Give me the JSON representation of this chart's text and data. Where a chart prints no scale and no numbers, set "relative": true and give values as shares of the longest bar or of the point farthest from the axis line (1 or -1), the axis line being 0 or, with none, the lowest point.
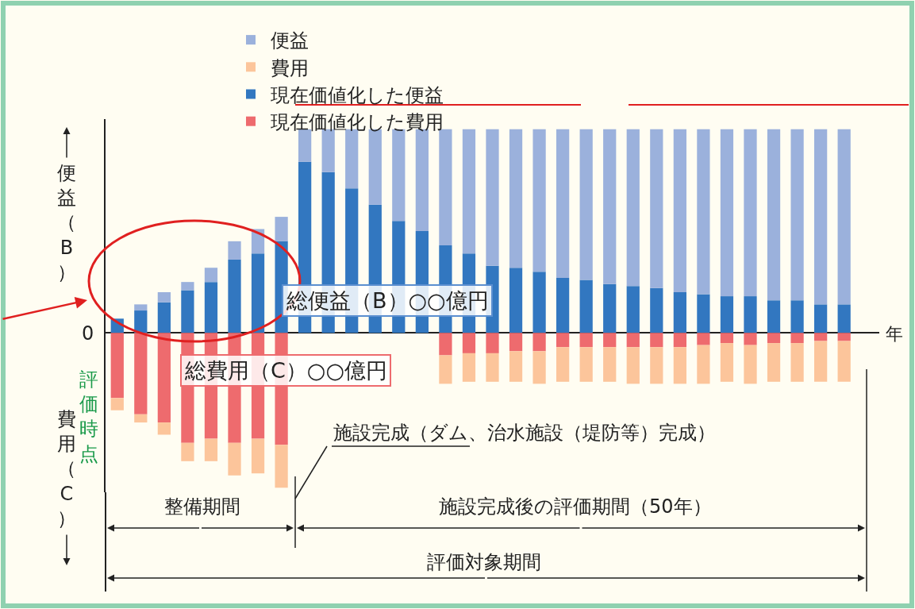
{
  "chart_data": {
    "type": "bar",
    "stacked": true,
    "relative": true,
    "legend": "top",
    "xlabel": "年",
    "ylabel": "便益（B）",
    "categories": [
      null,
      null,
      null,
      null,
      null,
      null,
      null,
      null,
      null,
      null,
      null,
      null,
      null,
      null,
      null,
      null,
      null,
      null,
      null,
      null,
      null,
      null,
      null,
      null,
      null,
      null,
      null,
      null,
      null,
      null,
      null,
      null
    ],
    "series": [
      {
        "name": "現在価値化した便益",
        "color": "#3277c0",
        "values": [
          0.07,
          0.11,
          0.15,
          0.21,
          0.25,
          0.36,
          0.39,
          0.45,
          0.84,
          0.79,
          0.71,
          0.63,
          0.55,
          0.5,
          0.43,
          0.39,
          0.33,
          0.32,
          0.3,
          0.27,
          0.26,
          0.24,
          0.23,
          0.22,
          0.2,
          0.19,
          0.18,
          0.18,
          0.16,
          0.16,
          0.14,
          0.14
        ]
      },
      {
        "name": "便益",
        "color": "#9bb1dc",
        "values": [
          0,
          0.03,
          0.05,
          0.04,
          0.07,
          0.09,
          0.12,
          0.12,
          0.16,
          0.21,
          0.29,
          0.37,
          0.45,
          0.5,
          0.57,
          0.61,
          0.67,
          0.68,
          0.7,
          0.73,
          0.74,
          0.76,
          0.77,
          0.78,
          0.8,
          0.81,
          0.82,
          0.82,
          0.84,
          0.84,
          0.86,
          0.86
        ]
      },
      {
        "name": "現在価値化した費用",
        "color": "#ee6b6e",
        "values": [
          -0.32,
          -0.4,
          -0.44,
          -0.54,
          -0.52,
          -0.54,
          -0.52,
          -0.55,
          null,
          null,
          null,
          null,
          null,
          null,
          -0.11,
          -0.1,
          -0.1,
          -0.09,
          -0.09,
          -0.07,
          -0.07,
          -0.07,
          -0.07,
          -0.07,
          -0.07,
          -0.06,
          -0.05,
          -0.06,
          -0.05,
          -0.05,
          -0.04,
          -0.04
        ]
      },
      {
        "name": "費用",
        "color": "#fcc59b",
        "values": [
          -0.06,
          -0.04,
          -0.06,
          -0.09,
          -0.11,
          -0.16,
          -0.17,
          -0.21,
          null,
          null,
          null,
          null,
          null,
          null,
          -0.14,
          -0.14,
          -0.14,
          -0.15,
          -0.16,
          -0.17,
          -0.17,
          -0.17,
          -0.18,
          -0.18,
          -0.18,
          -0.19,
          -0.19,
          -0.19,
          -0.19,
          -0.19,
          -0.2,
          -0.2
        ]
      }
    ],
    "annotations": [
      "総便益（B）○○億円",
      "総費用（C）○○億円",
      "施設完成（ダム、治水施設（堤防等）完成）",
      "整備期間",
      "施設完成後の評価期間（50年）",
      "評価対象期間",
      "評価時点",
      "0",
      "費用（C）"
    ]
  }
}
